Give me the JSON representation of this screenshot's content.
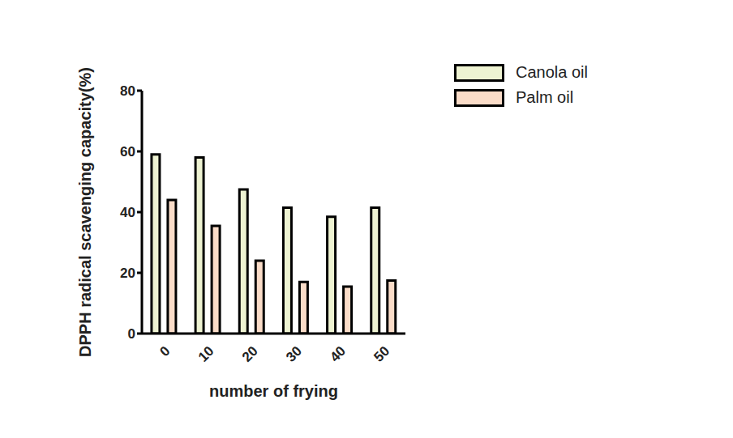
{
  "chart_data": {
    "type": "bar",
    "x_label": "number of frying",
    "y_label": "DPPH radical scavenging capacity(%)",
    "categories": [
      "0",
      "10",
      "20",
      "30",
      "40",
      "50"
    ],
    "series": [
      {
        "name": "Canola oil",
        "color": "#eef3d2",
        "values": [
          59,
          58,
          47.5,
          41.5,
          38.5,
          41.5
        ]
      },
      {
        "name": "Palm oil",
        "color": "#fadcc8",
        "values": [
          44,
          35.5,
          24,
          17,
          15.5,
          17.5
        ]
      }
    ],
    "ylim": [
      0,
      80
    ],
    "yticks": [
      0,
      20,
      40,
      60,
      80
    ],
    "grid": false,
    "legend": "top-right"
  }
}
